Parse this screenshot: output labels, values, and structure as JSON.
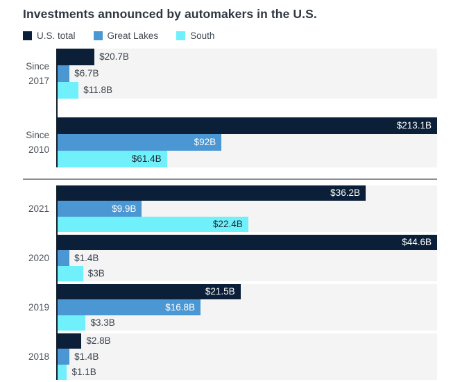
{
  "title": "Investments announced by automakers in the U.S.",
  "legend": [
    {
      "key": "us-total",
      "label": "U.S. total",
      "color": "#0b2038"
    },
    {
      "key": "great-lakes",
      "label": "Great Lakes",
      "color": "#4a97d3"
    },
    {
      "key": "south",
      "label": "South",
      "color": "#6ff0fa"
    }
  ],
  "chart_data": {
    "type": "bar",
    "orientation": "horizontal",
    "title": "Investments announced by automakers in the U.S.",
    "unit": "billions USD",
    "grid": false,
    "legend_position": "top",
    "series_names": [
      "U.S. total",
      "Great Lakes",
      "South"
    ],
    "sections": [
      {
        "name": "cumulative",
        "axis_max": 213.1,
        "groups": [
          {
            "label": "Since 2017",
            "label_lines": [
              "Since",
              "2017"
            ],
            "values": [
              20.7,
              6.7,
              11.8
            ],
            "value_labels": [
              "$20.7B",
              "$6.7B",
              "$11.8B"
            ]
          },
          {
            "label": "Since 2010",
            "label_lines": [
              "Since",
              "2010"
            ],
            "values": [
              213.1,
              92,
              61.4
            ],
            "value_labels": [
              "$213.1B",
              "$92B",
              "$61.4B"
            ]
          }
        ]
      },
      {
        "name": "by-year",
        "axis_max": 44.6,
        "groups": [
          {
            "label": "2021",
            "label_lines": [
              "2021"
            ],
            "values": [
              36.2,
              9.9,
              22.4
            ],
            "value_labels": [
              "$36.2B",
              "$9.9B",
              "$22.4B"
            ]
          },
          {
            "label": "2020",
            "label_lines": [
              "2020"
            ],
            "values": [
              44.6,
              1.4,
              3
            ],
            "value_labels": [
              "$44.6B",
              "$1.4B",
              "$3B"
            ]
          },
          {
            "label": "2019",
            "label_lines": [
              "2019"
            ],
            "values": [
              21.5,
              16.8,
              3.3
            ],
            "value_labels": [
              "$21.5B",
              "$16.8B",
              "$3.3B"
            ]
          },
          {
            "label": "2018",
            "label_lines": [
              "2018"
            ],
            "values": [
              2.8,
              1.4,
              1.1
            ],
            "value_labels": [
              "$2.8B",
              "$1.4B",
              "$1.1B"
            ]
          }
        ]
      }
    ]
  }
}
